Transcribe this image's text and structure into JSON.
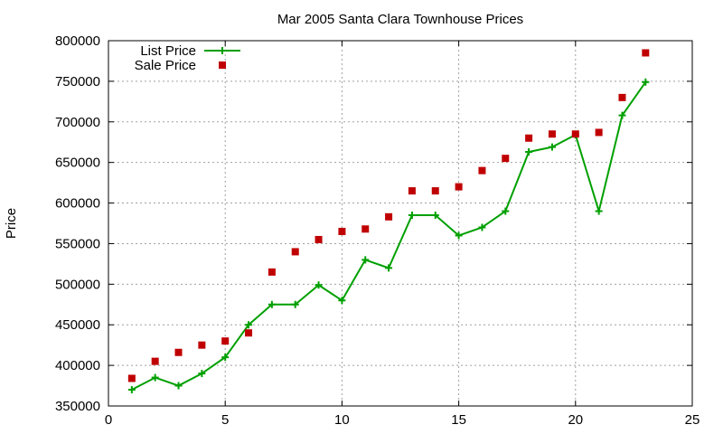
{
  "chart_data": {
    "type": "line",
    "title": "Mar 2005 Santa Clara Townhouse Prices",
    "xlabel": "",
    "ylabel": "Price",
    "xlim": [
      0,
      25
    ],
    "ylim": [
      350000,
      800000
    ],
    "x_ticks": [
      0,
      5,
      10,
      15,
      20,
      25
    ],
    "y_ticks": [
      350000,
      400000,
      450000,
      500000,
      550000,
      600000,
      650000,
      700000,
      750000,
      800000
    ],
    "grid": true,
    "legend_position": "top-left",
    "series": [
      {
        "name": "List Price",
        "style": "line-with-plus-markers",
        "color": "#00a000",
        "x": [
          1,
          2,
          3,
          4,
          5,
          6,
          7,
          8,
          9,
          10,
          11,
          12,
          13,
          14,
          15,
          16,
          17,
          18,
          19,
          20,
          21,
          22,
          23
        ],
        "values": [
          370000,
          385000,
          375000,
          390000,
          410000,
          450000,
          475000,
          475000,
          499000,
          480000,
          530000,
          520000,
          585000,
          585000,
          560000,
          570000,
          590000,
          663000,
          669000,
          684000,
          590000,
          708000,
          749000
        ]
      },
      {
        "name": "Sale Price",
        "style": "square-points",
        "color": "#c00000",
        "x": [
          1,
          2,
          3,
          4,
          5,
          6,
          7,
          8,
          9,
          10,
          11,
          12,
          13,
          14,
          15,
          16,
          17,
          18,
          19,
          20,
          21,
          22,
          23
        ],
        "values": [
          384000,
          405000,
          416000,
          425000,
          430000,
          440000,
          515000,
          540000,
          555000,
          565000,
          568000,
          583000,
          615000,
          615000,
          620000,
          640000,
          655000,
          680000,
          685000,
          685000,
          687000,
          730000,
          785000
        ]
      }
    ]
  }
}
